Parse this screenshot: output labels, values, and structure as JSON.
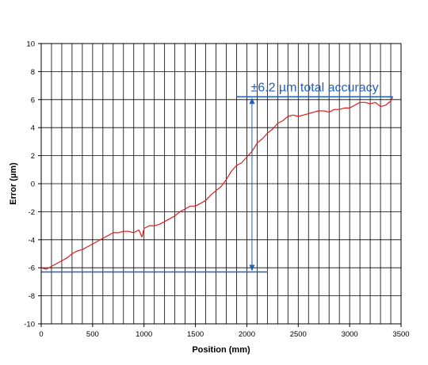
{
  "chart_data": {
    "type": "line",
    "xlabel": "Position (mm)",
    "ylabel": "Error (µm)",
    "xlim": [
      0,
      3500
    ],
    "ylim": [
      -10,
      10
    ],
    "x_ticks": [
      0,
      500,
      1000,
      1500,
      2000,
      2500,
      3000,
      3500
    ],
    "y_ticks": [
      -10,
      -8,
      -6,
      -4,
      -2,
      0,
      2,
      4,
      6,
      8,
      10
    ],
    "x_tick_labels": [
      "0",
      "500",
      "1000",
      "1500",
      "2000",
      "2500",
      "3000",
      "3500"
    ],
    "y_tick_labels": [
      "-10",
      "-8",
      "-6",
      "-4",
      "-2",
      "0",
      "2",
      "4",
      "6",
      "8",
      "10"
    ],
    "grid": true,
    "series": [
      {
        "color": "#e31a1c",
        "x": [
          0,
          50,
          100,
          150,
          200,
          250,
          300,
          350,
          400,
          450,
          500,
          550,
          600,
          650,
          700,
          750,
          800,
          850,
          900,
          950,
          980,
          1000,
          1050,
          1100,
          1150,
          1200,
          1250,
          1300,
          1350,
          1400,
          1450,
          1500,
          1550,
          1600,
          1650,
          1700,
          1750,
          1800,
          1850,
          1900,
          1950,
          2000,
          2050,
          2100,
          2150,
          2200,
          2250,
          2300,
          2350,
          2400,
          2450,
          2500,
          2550,
          2600,
          2650,
          2700,
          2750,
          2800,
          2850,
          2900,
          2950,
          3000,
          3050,
          3100,
          3150,
          3200,
          3250,
          3300,
          3350,
          3400,
          3420
        ],
        "y": [
          -6.0,
          -6.1,
          -5.9,
          -5.7,
          -5.5,
          -5.3,
          -5.0,
          -4.8,
          -4.7,
          -4.5,
          -4.3,
          -4.1,
          -3.9,
          -3.7,
          -3.5,
          -3.5,
          -3.4,
          -3.4,
          -3.5,
          -3.3,
          -3.8,
          -3.2,
          -3.0,
          -3.0,
          -2.9,
          -2.7,
          -2.5,
          -2.3,
          -2.0,
          -1.8,
          -1.6,
          -1.6,
          -1.4,
          -1.2,
          -0.8,
          -0.5,
          -0.2,
          0.3,
          0.9,
          1.3,
          1.5,
          1.9,
          2.3,
          2.9,
          3.2,
          3.6,
          3.9,
          4.3,
          4.5,
          4.8,
          4.9,
          4.8,
          4.9,
          5.0,
          5.1,
          5.2,
          5.2,
          5.1,
          5.3,
          5.3,
          5.4,
          5.4,
          5.6,
          5.8,
          5.8,
          5.7,
          5.8,
          5.5,
          5.6,
          5.9,
          6.2
        ]
      }
    ],
    "annotation": {
      "text": "±6.2 µm total accuracy",
      "color": "#1f5fbf",
      "top_value": 6.2,
      "bottom_value": -6.3,
      "arrow_x": 2050,
      "top_line_x": [
        1900,
        3420
      ],
      "bottom_line_x": [
        0,
        2200
      ]
    }
  }
}
